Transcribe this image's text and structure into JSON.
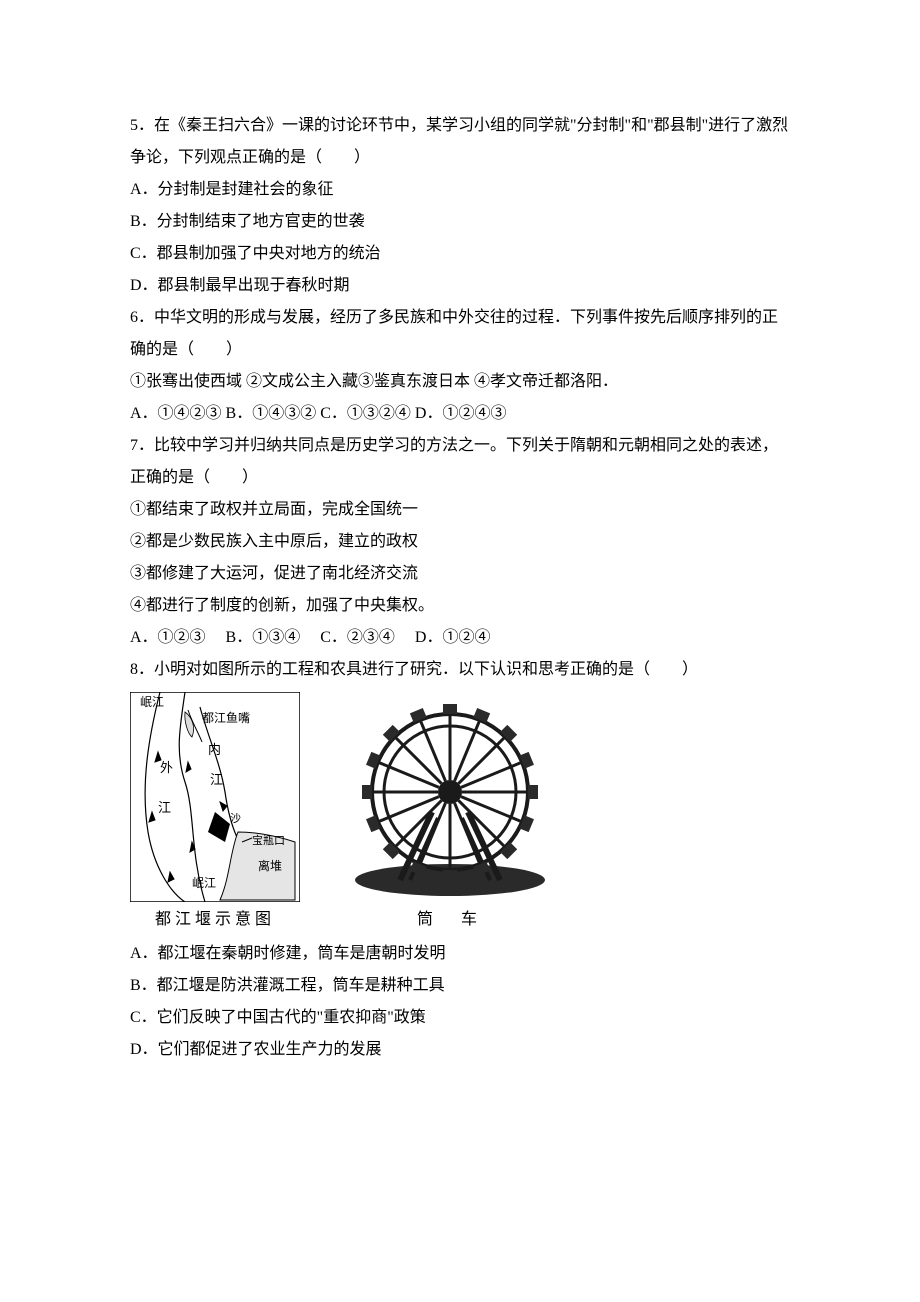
{
  "q5": {
    "stem": "5．在《秦王扫六合》一课的讨论环节中，某学习小组的同学就\"分封制\"和\"郡县制\"进行了激烈争论，下列观点正确的是（　　）",
    "A": "A．分封制是封建社会的象征",
    "B": "B．分封制结束了地方官吏的世袭",
    "C": "C．郡县制加强了中央对地方的统治",
    "D": "D．郡县制最早出现于春秋时期"
  },
  "q6": {
    "stem": "6．中华文明的形成与发展，经历了多民族和中外交往的过程．下列事件按先后顺序排列的正确的是（　　）",
    "items": "①张骞出使西域 ②文成公主入藏③鉴真东渡日本 ④孝文帝迁都洛阳．",
    "opts": "A．①④②③ B．①④③② C．①③②④ D．①②④③"
  },
  "q7": {
    "stem": "7．比较中学习并归纳共同点是历史学习的方法之一。下列关于隋朝和元朝相同之处的表述，正确的是（　　）",
    "s1": "①都结束了政权并立局面，完成全国统一",
    "s2": "②都是少数民族入主中原后，建立的政权",
    "s3": "③都修建了大运河，促进了南北经济交流",
    "s4": "④都进行了制度的创新，加强了中央集权。",
    "opts": "A．①②③　 B．①③④　 C．②③④　 D．①②④"
  },
  "q8": {
    "stem": "8．小明对如图所示的工程和农具进行了研究．以下认识和思考正确的是（　　）",
    "cap1": "都江堰示意图",
    "cap2": "筒　车",
    "A": "A．都江堰在秦朝时修建，筒车是唐朝时发明",
    "B": "B．都江堰是防洪灌溉工程，筒车是耕种工具",
    "C": "C．它们反映了中国古代的\"重农抑商\"政策",
    "D": "D．它们都促进了农业生产力的发展"
  },
  "map": {
    "labels": {
      "minjiang_top": "岷江",
      "yuzui": "都江鱼嘴",
      "nei": "内",
      "wai": "外",
      "jiang1": "江",
      "jiang2": "江",
      "sha": "沙",
      "baopingkou": "宝瓶口",
      "minjiang_bot": "岷江",
      "lidui": "离堆"
    },
    "stroke": "#000000",
    "fill_bg": "#ffffff"
  },
  "wheel": {
    "spokes": 16,
    "base_color": "#2a2a2a",
    "rim_color": "#1a1a1a"
  }
}
